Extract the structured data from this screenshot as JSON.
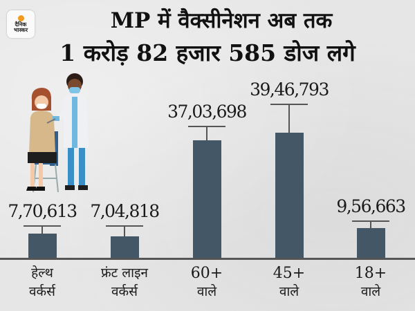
{
  "logo": {
    "line1": "दैनिक",
    "line2": "भास्कर",
    "sun_color": "#f39a1e"
  },
  "header": {
    "title_line1": "MP में वैक्सीनेशन अब तक",
    "title_line2": "1 करोड़ 82 हजार 585 डोज लगे"
  },
  "illustration": {
    "icon": "vaccination-illustration-icon",
    "description": "doctor vaccinating seated woman"
  },
  "colors": {
    "bar": "#435766",
    "background": "#e6e6e6",
    "error_bar": "#555555"
  },
  "chart_data": {
    "type": "bar",
    "title": "MP में वैक्सीनेशन अब तक 1 करोड़ 82 हजार 585 डोज लगे",
    "categories": [
      "हेल्थ वर्कर्स",
      "फ्रंट लाइन वर्कर्स",
      "60+ वाले",
      "45+ वाले",
      "18+ वाले"
    ],
    "category_lines": [
      [
        "हेल्थ",
        "वर्कर्स"
      ],
      [
        "फ्रंट लाइन",
        "वर्कर्स"
      ],
      [
        "60+",
        "वाले"
      ],
      [
        "45+",
        "वाले"
      ],
      [
        "18+",
        "वाले"
      ]
    ],
    "values": [
      770613,
      704818,
      3703698,
      3946793,
      956663
    ],
    "value_labels": [
      "7,70,613",
      "7,04,818",
      "37,03,698",
      "39,46,793",
      "9,56,663"
    ],
    "xlabel": "",
    "ylabel": "",
    "grid": false,
    "legend": "none"
  }
}
